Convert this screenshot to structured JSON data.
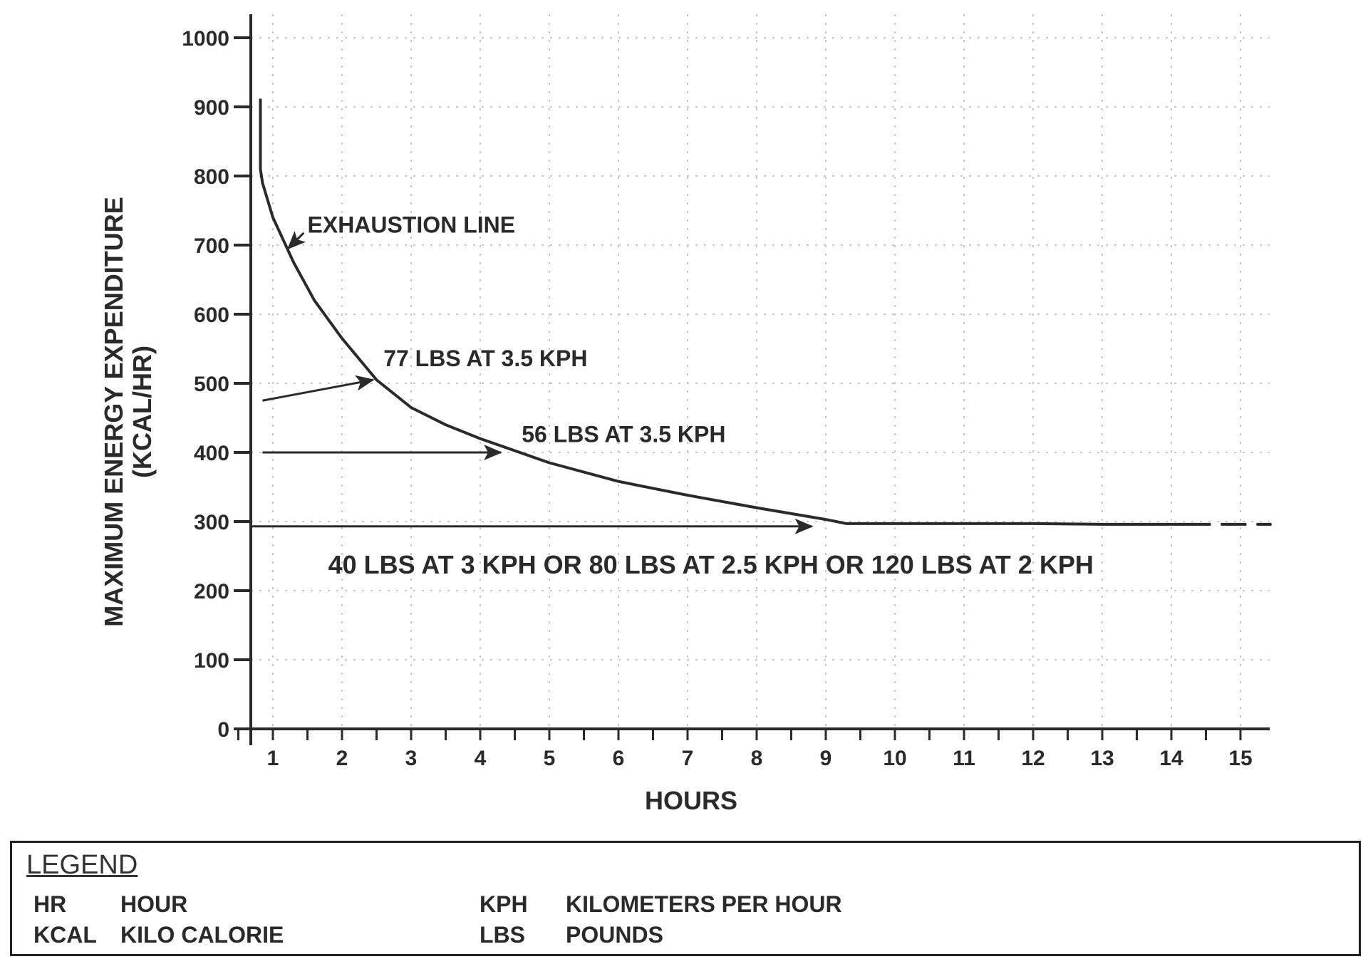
{
  "chart_data": {
    "type": "line",
    "title": "",
    "xlabel": "HOURS",
    "ylabel_line1": "MAXIMUM ENERGY EXPENDITURE",
    "ylabel_line2": "(KCAL/HR)",
    "xlim": [
      0.7,
      15.5
    ],
    "ylim": [
      0,
      1000
    ],
    "xticks": [
      "1",
      "2",
      "3",
      "4",
      "5",
      "6",
      "7",
      "8",
      "9",
      "10",
      "11",
      "12",
      "13",
      "14",
      "15"
    ],
    "yticks": [
      "0",
      "100",
      "200",
      "300",
      "400",
      "500",
      "600",
      "700",
      "800",
      "900",
      "1000"
    ],
    "grid": true,
    "series": [
      {
        "name": "EXHAUSTION LINE",
        "x": [
          0.82,
          0.82,
          0.85,
          1.0,
          1.3,
          1.6,
          2.0,
          2.5,
          3.0,
          3.5,
          4.0,
          5.0,
          6.0,
          7.0,
          8.0,
          9.0,
          9.3,
          10,
          11,
          12,
          13,
          14.2
        ],
        "y": [
          910,
          810,
          790,
          740,
          675,
          620,
          565,
          505,
          465,
          440,
          420,
          385,
          358,
          338,
          320,
          303,
          297,
          297,
          297,
          297,
          296,
          296
        ]
      },
      {
        "name": "extension",
        "style": "dashed",
        "x": [
          14.2,
          15.45
        ],
        "y": [
          296,
          296
        ]
      }
    ],
    "annotations": [
      {
        "text": "EXHAUSTION LINE",
        "x": 1.5,
        "y": 718,
        "arrow_to": [
          1.22,
          695
        ]
      },
      {
        "text": "77 LBS AT 3.5 KPH",
        "x": 2.6,
        "y": 525,
        "arrow_from": [
          0.85,
          475
        ],
        "arrow_to": [
          2.45,
          505
        ]
      },
      {
        "text": "56 LBS AT 3.5 KPH",
        "x": 4.6,
        "y": 415,
        "arrow_from": [
          0.85,
          400
        ],
        "arrow_to": [
          4.3,
          400
        ]
      },
      {
        "text": "40 LBS AT 3 KPH OR 80 LBS AT 2.5 KPH OR 120 LBS AT 2 KPH",
        "x": 1.8,
        "y": 225,
        "arrow_from": [
          0.7,
          293
        ],
        "arrow_to": [
          8.8,
          293
        ]
      }
    ]
  },
  "legend": {
    "title": "LEGEND",
    "entries": [
      {
        "abbr": "HR",
        "meaning": "HOUR"
      },
      {
        "abbr": "KCAL",
        "meaning": "KILO CALORIE"
      },
      {
        "abbr": "KPH",
        "meaning": "KILOMETERS PER HOUR"
      },
      {
        "abbr": "LBS",
        "meaning": "POUNDS"
      }
    ]
  }
}
